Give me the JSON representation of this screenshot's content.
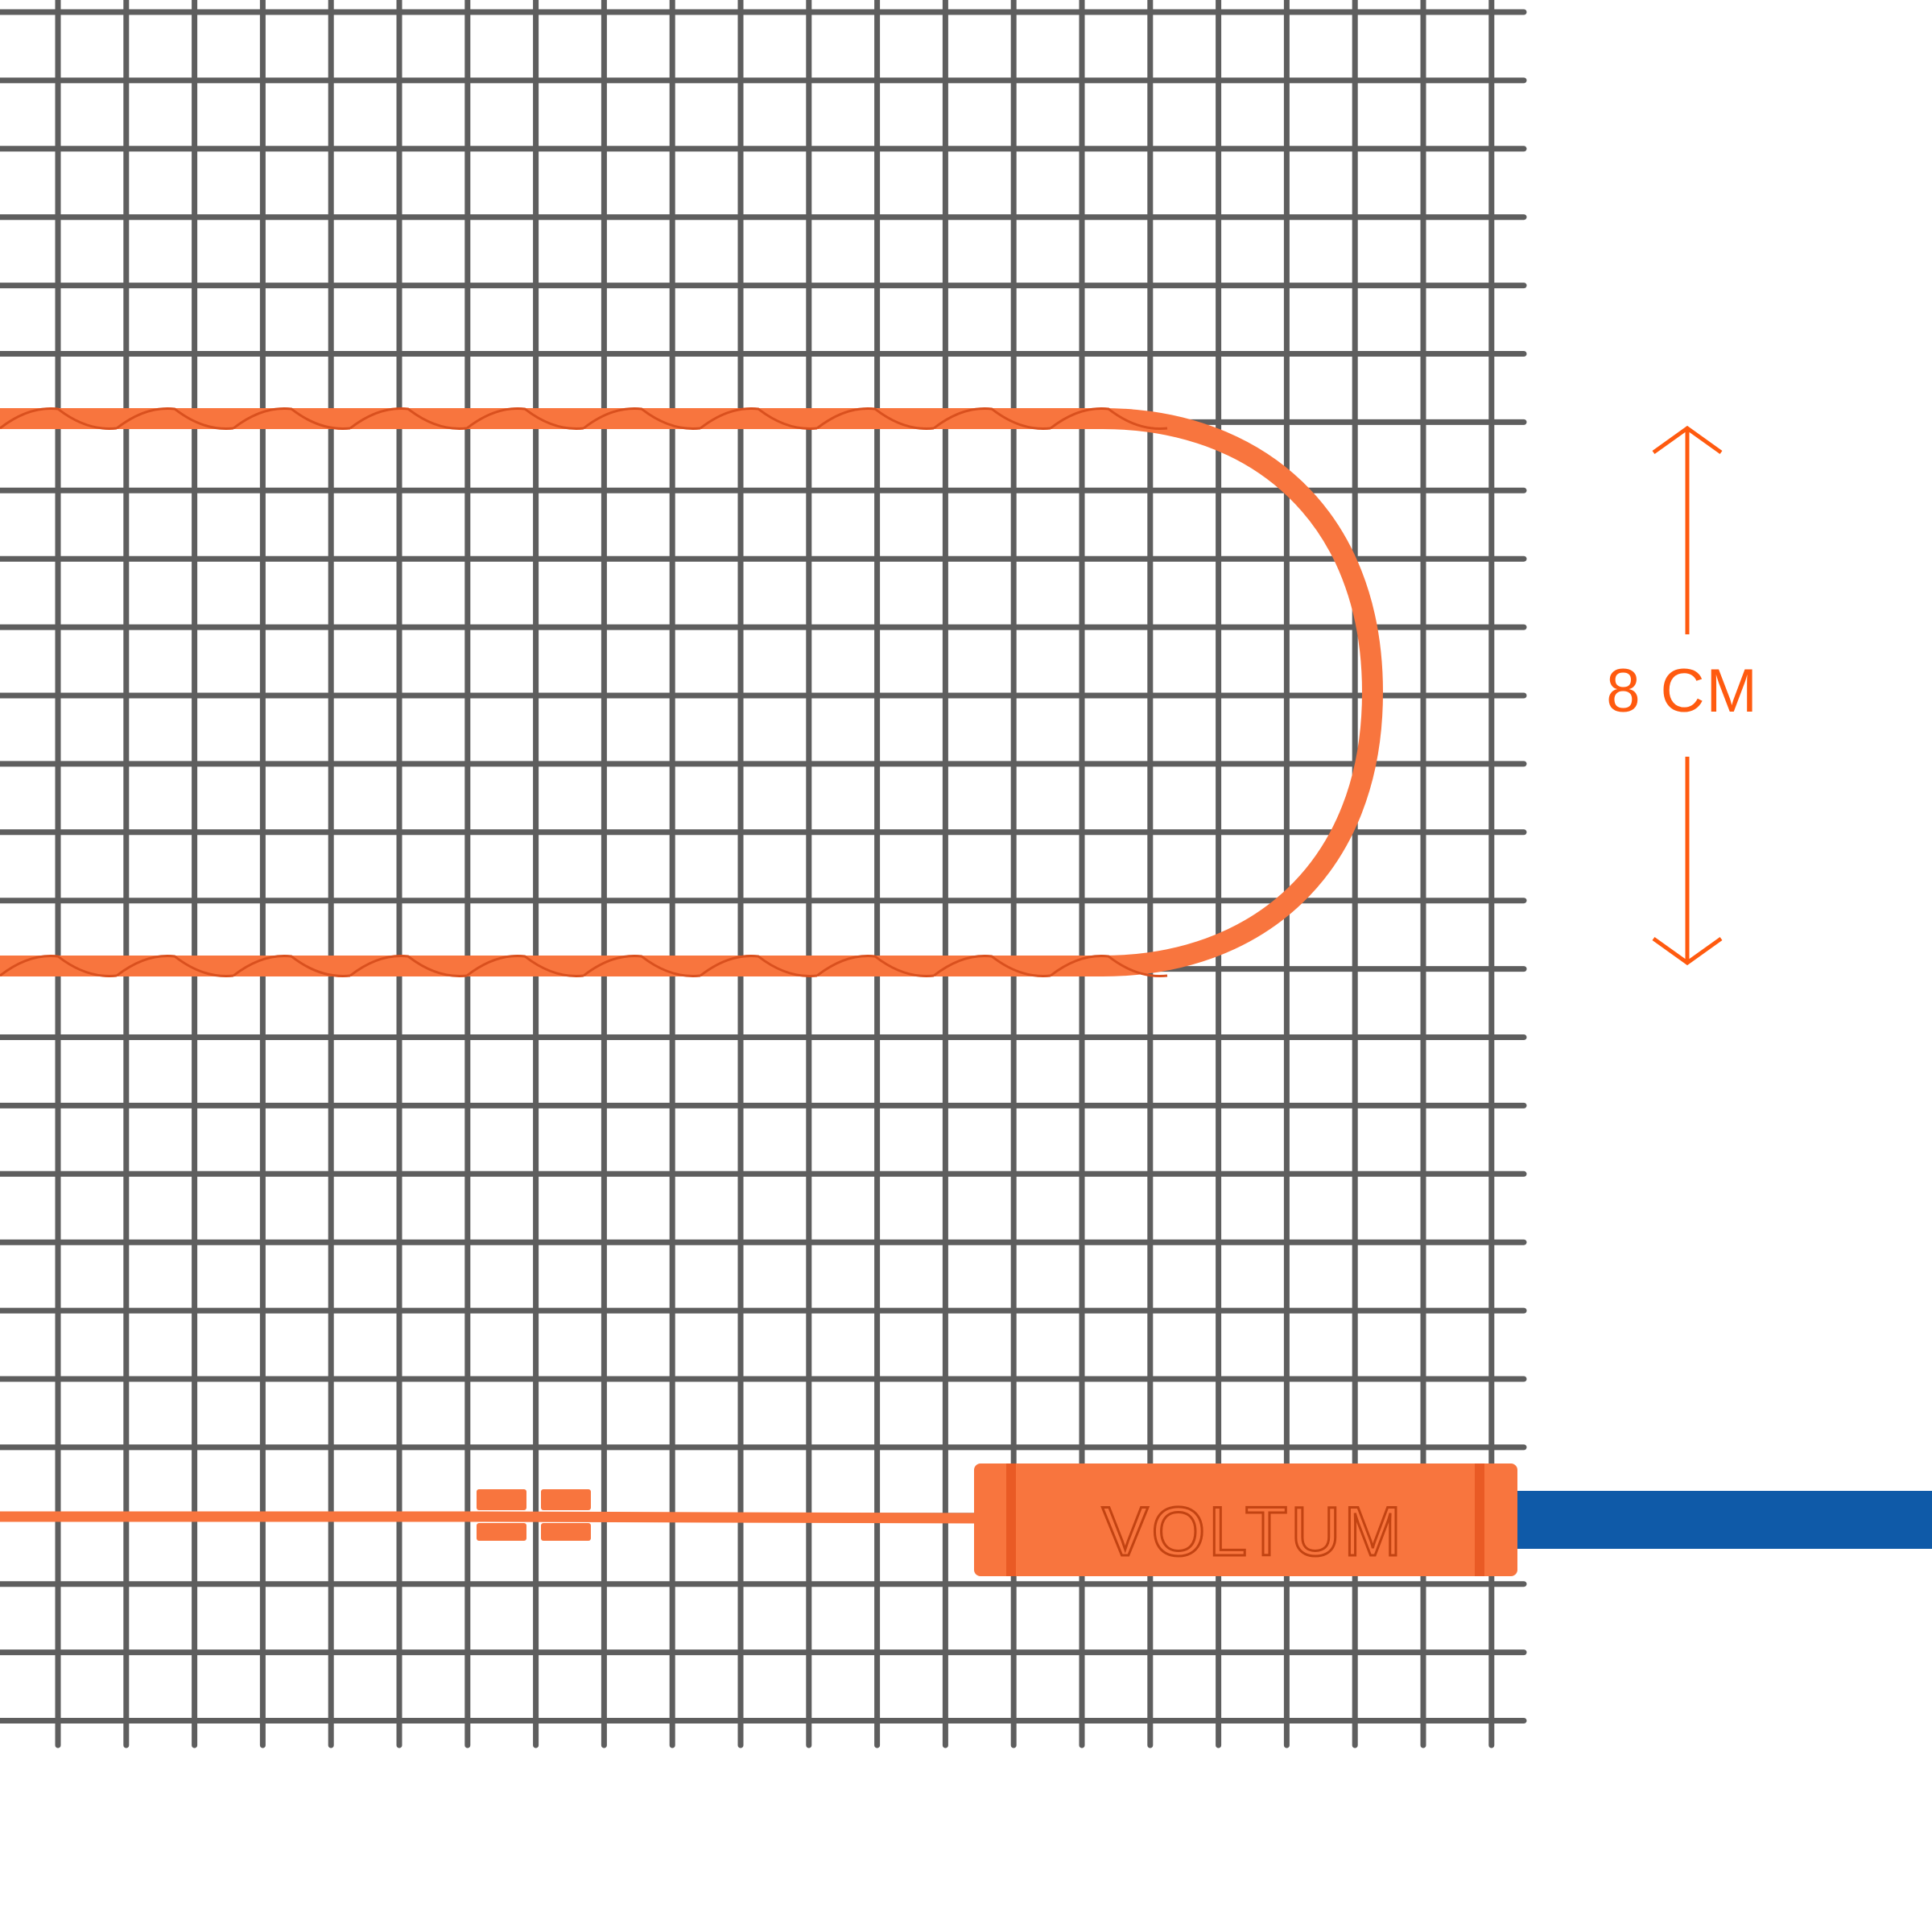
{
  "product": {
    "brand_label": "VOLTUM",
    "dimension_label": "8 CM"
  },
  "colors": {
    "mesh": "#5e5e5e",
    "cable": "#f8753e",
    "cable_wrap": "#d9501e",
    "dimension": "#ff5a0f",
    "power_lead": "#0f5aa8",
    "background": "#ffffff"
  },
  "icons": {
    "dimension_arrow_up": "arrow-up-icon",
    "dimension_arrow_down": "arrow-down-icon"
  }
}
